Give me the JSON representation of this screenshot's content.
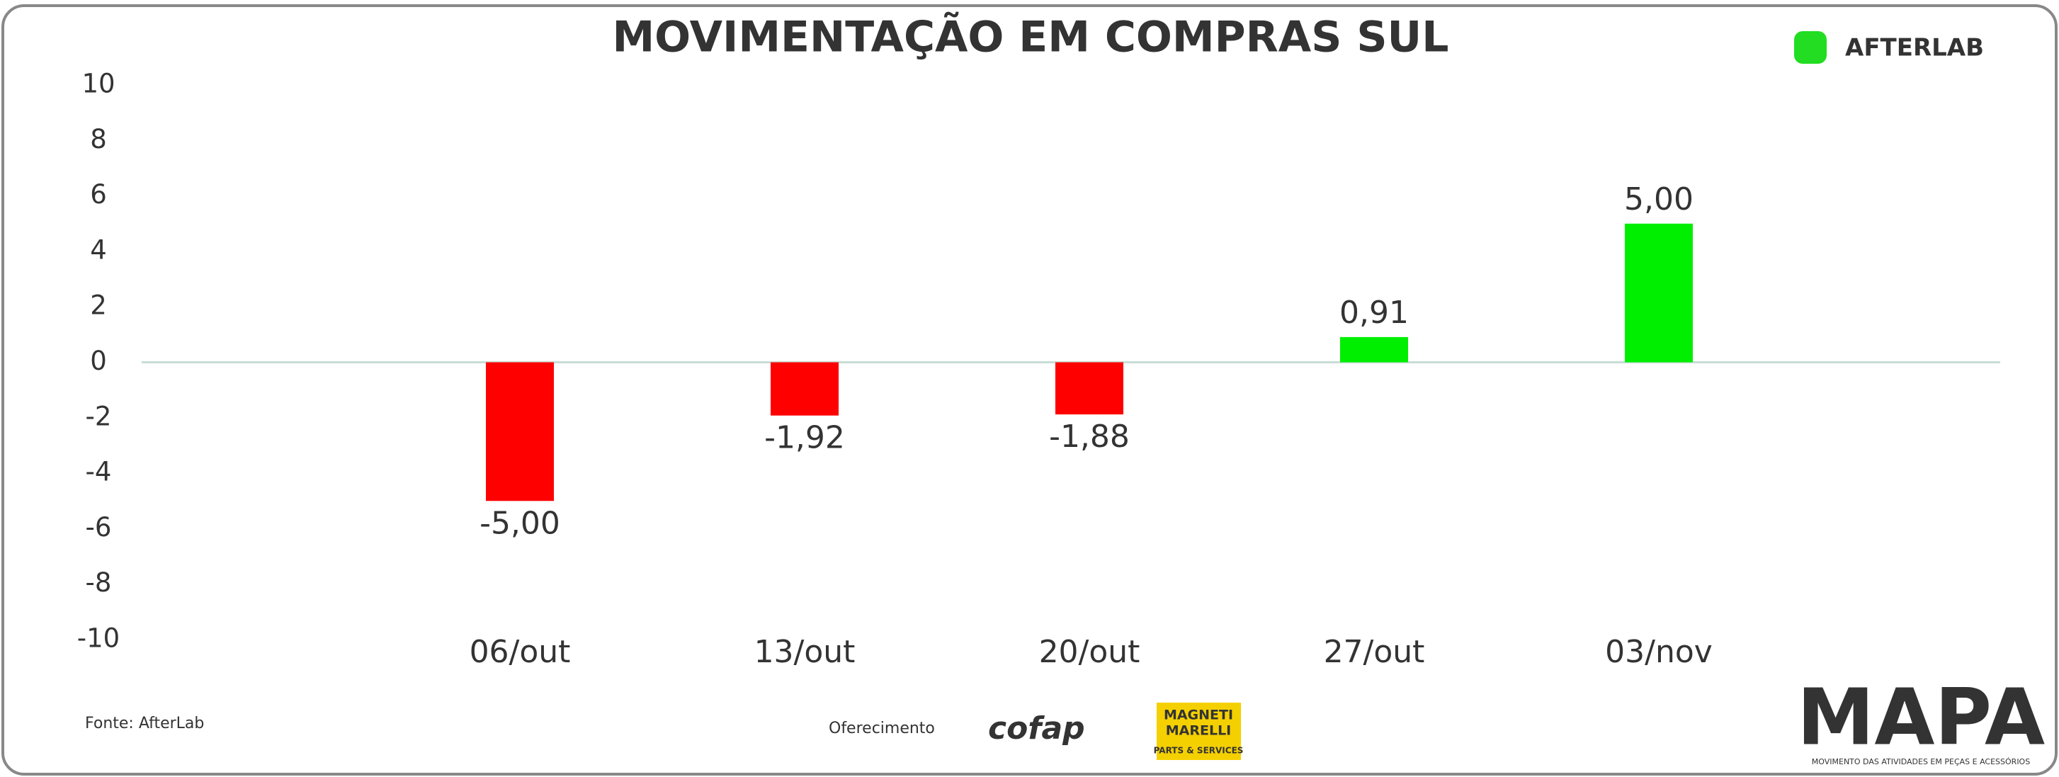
{
  "chart_data": {
    "type": "bar",
    "title": "MOVIMENTAÇÃO EM COMPRAS SUL",
    "categories": [
      "06/out",
      "13/out",
      "20/out",
      "27/out",
      "03/nov"
    ],
    "values": [
      -5.0,
      -1.92,
      -1.88,
      0.91,
      5.0
    ],
    "value_labels": [
      "-5,00",
      "-1,92",
      "-1,88",
      "0,91",
      "5,00"
    ],
    "colors": [
      "#ff0000",
      "#ff0000",
      "#ff0000",
      "#00ee00",
      "#00ee00"
    ],
    "ylim": [
      -10,
      10
    ],
    "yticks": [
      -10,
      -8,
      -6,
      -4,
      -2,
      0,
      2,
      4,
      6,
      8,
      10
    ]
  },
  "branding": {
    "logo": "AFTERLAB",
    "source": "Fonte: AfterLab",
    "sponsor_label": "Oferecimento",
    "sponsor_1": "cofap",
    "sponsor_2_line_1": "MAGNETI",
    "sponsor_2_line_2": "MARELLI",
    "sponsor_2_line_3": "PARTS & SERVICES",
    "mapa": "MAPA",
    "mapa_subtitle": "MOVIMENTO DAS ATIVIDADES EM PEÇAS E ACESSÓRIOS"
  }
}
